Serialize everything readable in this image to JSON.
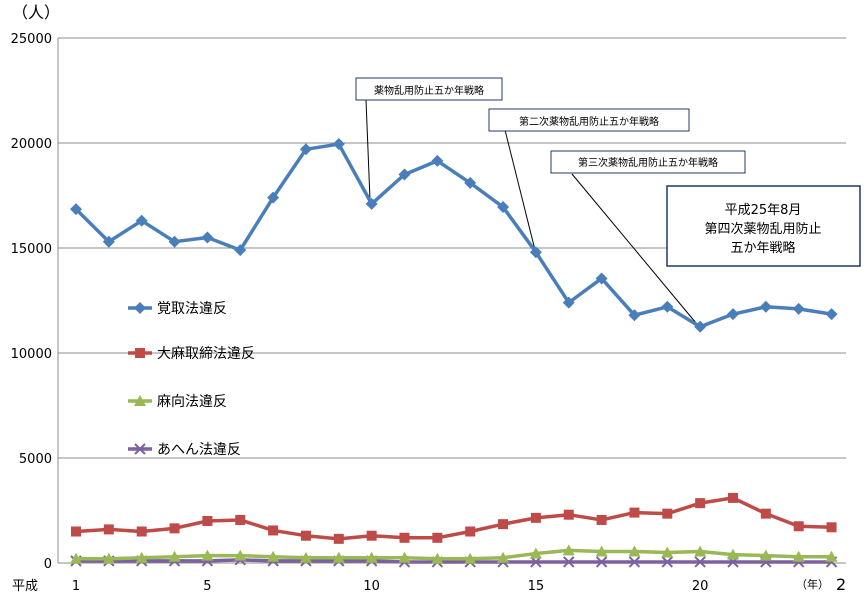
{
  "chart_data": {
    "type": "line",
    "y_unit_label": "（人）",
    "x_prefix_label": "平成",
    "x_unit_label": "（年）",
    "x_trailing_label": "2",
    "ylim": [
      0,
      25000
    ],
    "yticks": [
      0,
      5000,
      10000,
      15000,
      20000,
      25000
    ],
    "xticks": [
      1,
      5,
      10,
      15,
      20
    ],
    "x": [
      1,
      2,
      3,
      4,
      5,
      6,
      7,
      8,
      9,
      10,
      11,
      12,
      13,
      14,
      15,
      16,
      17,
      18,
      19,
      20,
      21,
      22,
      23,
      24
    ],
    "grid": "horizontal",
    "legend_position": "left-middle",
    "series": [
      {
        "name": "覚取法違反",
        "color": "#4a7ebb",
        "marker": "diamond",
        "values": [
          16850,
          15300,
          16300,
          15300,
          15500,
          14900,
          17400,
          19700,
          19950,
          17100,
          18500,
          19150,
          18100,
          16950,
          14800,
          12400,
          13550,
          11800,
          12200,
          11250,
          11850,
          12200,
          12100,
          11850
        ]
      },
      {
        "name": "大麻取締法違反",
        "color": "#be4b48",
        "marker": "square",
        "values": [
          1500,
          1600,
          1500,
          1650,
          2000,
          2050,
          1550,
          1300,
          1150,
          1300,
          1200,
          1200,
          1500,
          1850,
          2150,
          2300,
          2050,
          2400,
          2350,
          2850,
          3100,
          2350,
          1750,
          1700
        ]
      },
      {
        "name": "麻向法違反",
        "color": "#98b954",
        "marker": "triangle",
        "values": [
          200,
          200,
          250,
          300,
          350,
          350,
          300,
          250,
          250,
          250,
          250,
          200,
          200,
          250,
          450,
          600,
          550,
          550,
          500,
          550,
          400,
          350,
          300,
          300
        ]
      },
      {
        "name": "あへん法違反",
        "color": "#7d60a0",
        "marker": "x",
        "values": [
          100,
          100,
          100,
          100,
          100,
          150,
          100,
          100,
          100,
          100,
          50,
          50,
          50,
          50,
          50,
          50,
          50,
          50,
          50,
          50,
          50,
          50,
          50,
          50
        ]
      }
    ],
    "annotations": [
      {
        "text": "薬物乱用防止五か年戦略",
        "x": 10
      },
      {
        "text": "第二次薬物乱用防止五か年戦略",
        "x": 15
      },
      {
        "text": "第三次薬物乱用防止五か年戦略",
        "x": 20
      },
      {
        "text_lines": [
          "平成25年8月",
          "第四次薬物乱用防止",
          "五か年戦略"
        ]
      }
    ]
  }
}
